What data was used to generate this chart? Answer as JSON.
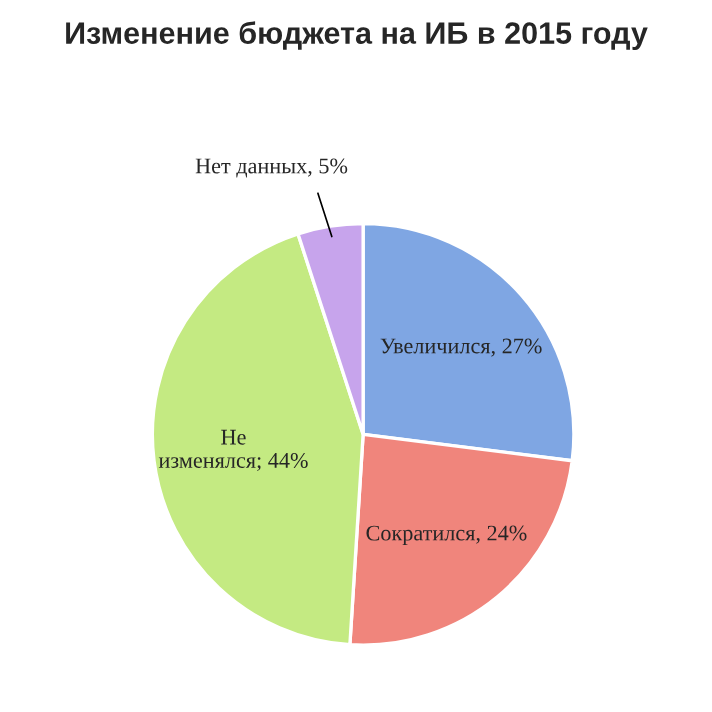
{
  "chart_data": {
    "type": "pie",
    "title": "Изменение бюджета на ИБ в 2015 году",
    "categories": [
      "Увеличился",
      "Сократился",
      "Не изменялся",
      "Нет данных"
    ],
    "values": [
      27,
      24,
      44,
      5
    ],
    "value_labels": [
      "27%",
      "24%",
      "44%",
      "5%"
    ],
    "colors": [
      "#7fa6e3",
      "#f0857c",
      "#c4ea82",
      "#c7a4ec"
    ]
  }
}
